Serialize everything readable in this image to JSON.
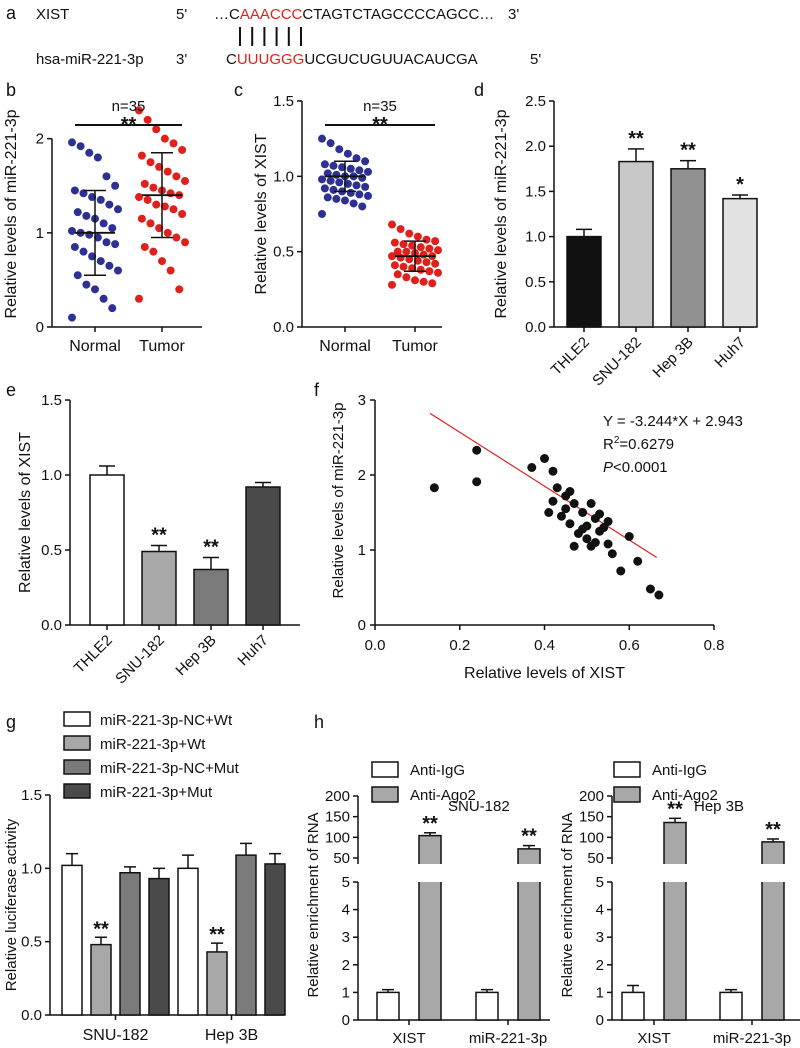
{
  "panel_a": {
    "label": "a",
    "xist_name": "XIST",
    "xist_5": "5'",
    "xist_pre": "…C",
    "xist_seed": "AAACCC",
    "xist_post": "CTAGTCTAGCCCCAGCC…",
    "xist_3": "3'",
    "mir_name": "hsa-miR-221-3p",
    "mir_3": "3'",
    "mir_pre": "C",
    "mir_seed": "UUUGGG",
    "mir_post": "UCGUCUGUUACAUCGA",
    "mir_5": "5'",
    "seed_color": "#e0201b"
  },
  "colors": {
    "blue": "#2e3192",
    "red": "#e0201b",
    "black": "#111111",
    "white": "#ffffff",
    "gray_light": "#c8c8c8",
    "gray_mid": "#a8a8a8",
    "gray_dark": "#7a7a7a",
    "gray_darker": "#4a4a4a",
    "gray_pale": "#e2e2e2",
    "gray_bar": "#909090",
    "line_red": "#e0201b"
  },
  "chart_data": [
    {
      "panel": "b",
      "type": "scatter",
      "ylabel": "Relative levels of miR-221-3p",
      "yticks": [
        0,
        1,
        2
      ],
      "ylim": [
        0,
        2.4
      ],
      "annotation": "n=35",
      "sig": "**",
      "categories": [
        "Normal",
        "Tumor"
      ],
      "groups": [
        {
          "name": "Normal",
          "mean": 1.0,
          "sd": 0.45,
          "color": "blue",
          "values": [
            1.96,
            1.92,
            1.85,
            1.8,
            1.6,
            1.5,
            1.45,
            1.42,
            1.38,
            1.35,
            1.3,
            1.25,
            1.22,
            1.18,
            1.15,
            1.1,
            1.05,
            1.02,
            1.0,
            0.98,
            0.95,
            0.9,
            0.88,
            0.85,
            0.8,
            0.75,
            0.7,
            0.65,
            0.6,
            0.55,
            0.45,
            0.4,
            0.3,
            0.2,
            0.1
          ]
        },
        {
          "name": "Tumor",
          "mean": 1.4,
          "sd": 0.45,
          "color": "red",
          "values": [
            2.3,
            2.2,
            2.1,
            2.0,
            1.95,
            1.88,
            1.82,
            1.75,
            1.7,
            1.65,
            1.6,
            1.55,
            1.52,
            1.48,
            1.45,
            1.42,
            1.4,
            1.38,
            1.35,
            1.3,
            1.28,
            1.25,
            1.2,
            1.15,
            1.1,
            1.05,
            1.0,
            0.95,
            0.9,
            0.85,
            0.8,
            0.7,
            0.6,
            0.4,
            0.3
          ]
        }
      ]
    },
    {
      "panel": "c",
      "type": "scatter",
      "ylabel": "Relative levels of XIST",
      "yticks": [
        0.0,
        0.5,
        1.0,
        1.5
      ],
      "ylim": [
        0,
        1.5
      ],
      "annotation": "n=35",
      "sig": "**",
      "categories": [
        "Normal",
        "Tumor"
      ],
      "groups": [
        {
          "name": "Normal",
          "mean": 1.0,
          "sd": 0.1,
          "color": "blue",
          "values": [
            1.25,
            1.22,
            1.18,
            1.15,
            1.12,
            1.1,
            1.08,
            1.07,
            1.06,
            1.05,
            1.04,
            1.03,
            1.02,
            1.01,
            1.0,
            1.0,
            0.99,
            0.98,
            0.97,
            0.96,
            0.95,
            0.94,
            0.93,
            0.92,
            0.91,
            0.9,
            0.89,
            0.88,
            0.87,
            0.86,
            0.85,
            0.84,
            0.82,
            0.8,
            0.75
          ]
        },
        {
          "name": "Tumor",
          "mean": 0.47,
          "sd": 0.1,
          "color": "red",
          "values": [
            0.68,
            0.65,
            0.62,
            0.6,
            0.58,
            0.57,
            0.56,
            0.55,
            0.54,
            0.53,
            0.52,
            0.51,
            0.5,
            0.5,
            0.49,
            0.48,
            0.47,
            0.47,
            0.46,
            0.45,
            0.44,
            0.43,
            0.42,
            0.41,
            0.4,
            0.39,
            0.38,
            0.37,
            0.36,
            0.35,
            0.33,
            0.31,
            0.3,
            0.29,
            0.28
          ]
        }
      ]
    },
    {
      "panel": "d",
      "type": "bar",
      "ylabel": "Relative levels of miR-221-3p",
      "yticks": [
        0.0,
        0.5,
        1.0,
        1.5,
        2.0,
        2.5
      ],
      "ylim": [
        0,
        2.5
      ],
      "categories": [
        "THLE2",
        "SNU-182",
        "Hep 3B",
        "Huh7"
      ],
      "values": [
        1.0,
        1.83,
        1.75,
        1.42
      ],
      "errors": [
        0.08,
        0.14,
        0.09,
        0.04
      ],
      "sig": [
        "",
        "**",
        "**",
        "*"
      ],
      "fills": [
        "black",
        "gray_light",
        "gray_bar",
        "gray_pale"
      ]
    },
    {
      "panel": "e",
      "type": "bar",
      "ylabel": "Relative levels of XIST",
      "yticks": [
        0.0,
        0.5,
        1.0,
        1.5
      ],
      "ylim": [
        0,
        1.5
      ],
      "categories": [
        "THLE2",
        "SNU-182",
        "Hep 3B",
        "Huh7"
      ],
      "values": [
        1.0,
        0.49,
        0.37,
        0.92
      ],
      "errors": [
        0.06,
        0.04,
        0.08,
        0.03
      ],
      "sig": [
        "",
        "**",
        "**",
        ""
      ],
      "fills": [
        "white",
        "gray_mid",
        "gray_dark",
        "gray_darker"
      ]
    },
    {
      "panel": "f",
      "type": "scatter",
      "xlabel": "Relative levels of XIST",
      "ylabel": "Relative levels of miR-221-3p",
      "xticks": [
        0.0,
        0.2,
        0.4,
        0.6,
        0.8
      ],
      "xlim": [
        0,
        0.8
      ],
      "yticks": [
        0,
        1,
        2,
        3
      ],
      "ylim": [
        0,
        3
      ],
      "equation": "Y = -3.244*X + 2.943",
      "r2_prefix": "R",
      "r2_sup": "2",
      "r2_value": "=0.6279",
      "p_italic": "P",
      "p_value": "<0.0001",
      "fit": {
        "slope": -3.244,
        "intercept": 2.943,
        "x_range": [
          0.14,
          0.67
        ]
      },
      "x": [
        0.14,
        0.24,
        0.24,
        0.37,
        0.4,
        0.41,
        0.42,
        0.42,
        0.43,
        0.44,
        0.45,
        0.45,
        0.46,
        0.46,
        0.47,
        0.47,
        0.48,
        0.49,
        0.49,
        0.5,
        0.5,
        0.51,
        0.51,
        0.52,
        0.52,
        0.53,
        0.53,
        0.54,
        0.55,
        0.55,
        0.56,
        0.58,
        0.6,
        0.62,
        0.65,
        0.67
      ],
      "y": [
        1.83,
        2.33,
        1.91,
        2.1,
        2.22,
        1.5,
        2.05,
        1.65,
        1.83,
        1.45,
        1.72,
        1.55,
        1.78,
        1.35,
        1.62,
        1.05,
        1.22,
        1.28,
        1.5,
        1.32,
        1.15,
        1.62,
        1.05,
        1.42,
        1.1,
        1.25,
        1.48,
        1.3,
        1.38,
        1.08,
        0.95,
        0.72,
        1.18,
        0.85,
        0.48,
        0.4
      ]
    },
    {
      "panel": "g",
      "type": "bar",
      "ylabel": "Relative luciferase activity",
      "yticks": [
        0.0,
        0.5,
        1.0,
        1.5
      ],
      "ylim": [
        0,
        1.5
      ],
      "categories": [
        "SNU-182",
        "Hep 3B"
      ],
      "series": [
        {
          "name": "miR-221-3p-NC+Wt",
          "fill": "white",
          "values": [
            1.02,
            1.0
          ],
          "errors": [
            0.08,
            0.09
          ],
          "sig": [
            "",
            ""
          ]
        },
        {
          "name": "miR-221-3p+Wt",
          "fill": "gray_mid",
          "values": [
            0.48,
            0.43
          ],
          "errors": [
            0.05,
            0.06
          ],
          "sig": [
            "**",
            "**"
          ]
        },
        {
          "name": "miR-221-3p-NC+Mut",
          "fill": "gray_dark",
          "values": [
            0.97,
            1.09
          ],
          "errors": [
            0.04,
            0.08
          ],
          "sig": [
            "",
            ""
          ]
        },
        {
          "name": "miR-221-3p+Mut",
          "fill": "gray_darker",
          "values": [
            0.93,
            1.03
          ],
          "errors": [
            0.07,
            0.07
          ],
          "sig": [
            "",
            ""
          ]
        }
      ]
    },
    {
      "panel": "h1",
      "type": "bar",
      "ylabel": "Relative enrichment of RNA",
      "subtitle": "SNU-182",
      "categories": [
        "XIST",
        "miR-221-3p"
      ],
      "upper_ticks": [
        50,
        100,
        150,
        200
      ],
      "upper_range": [
        50,
        200
      ],
      "lower_ticks": [
        0,
        1,
        2,
        3,
        4,
        5
      ],
      "lower_range": [
        0,
        5
      ],
      "series": [
        {
          "name": "Anti-IgG",
          "fill": "white",
          "values": [
            1.0,
            1.0
          ],
          "errors": [
            0.1,
            0.1
          ],
          "sig": [
            "",
            ""
          ]
        },
        {
          "name": "Anti-Ago2",
          "fill": "gray_mid",
          "values": [
            104,
            72
          ],
          "errors": [
            7,
            8
          ],
          "sig": [
            "**",
            "**"
          ]
        }
      ]
    },
    {
      "panel": "h2",
      "type": "bar",
      "ylabel": "Relative enrichment of RNA",
      "subtitle": "Hep 3B",
      "categories": [
        "XIST",
        "miR-221-3p"
      ],
      "upper_ticks": [
        50,
        100,
        150,
        200
      ],
      "upper_range": [
        50,
        200
      ],
      "lower_ticks": [
        0,
        1,
        2,
        3,
        4,
        5
      ],
      "lower_range": [
        0,
        5
      ],
      "series": [
        {
          "name": "Anti-IgG",
          "fill": "white",
          "values": [
            1.0,
            1.0
          ],
          "errors": [
            0.25,
            0.1
          ],
          "sig": [
            "",
            ""
          ]
        },
        {
          "name": "Anti-Ago2",
          "fill": "gray_mid",
          "values": [
            136,
            89
          ],
          "errors": [
            10,
            7
          ],
          "sig": [
            "**",
            "**"
          ]
        }
      ]
    }
  ],
  "labels": [
    "b",
    "c",
    "d",
    "e",
    "f",
    "g",
    "h"
  ]
}
